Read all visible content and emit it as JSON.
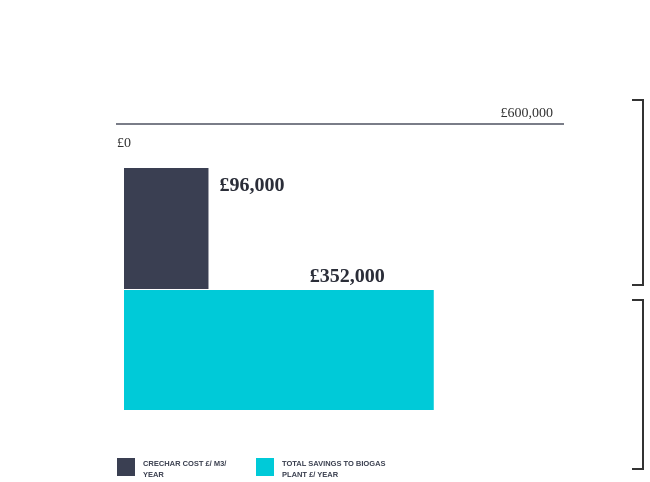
{
  "chart_data": {
    "type": "bar",
    "orientation": "horizontal",
    "xlim": [
      0,
      600000
    ],
    "axis_start_label": "£0",
    "axis_end_label": "£600,000",
    "series": [
      {
        "name": "CRECHAR COST £/ m3/ year",
        "value": 96000,
        "label": "£96,000",
        "color": "#3a3f52"
      },
      {
        "name": "TOTAL SAVINGS TO BIOGAS PLANT £/ year",
        "value": 352000,
        "label": "£352,000",
        "color": "#00cad8"
      }
    ],
    "legend_position": "bottom-left"
  },
  "legend": [
    {
      "text": "CRECHAR COST £/ m3/\nyear",
      "color": "#3a3f52"
    },
    {
      "text": "TOTAL SAVINGS TO BIOGAS\nPLANT £/ year",
      "color": "#00cad8"
    }
  ]
}
